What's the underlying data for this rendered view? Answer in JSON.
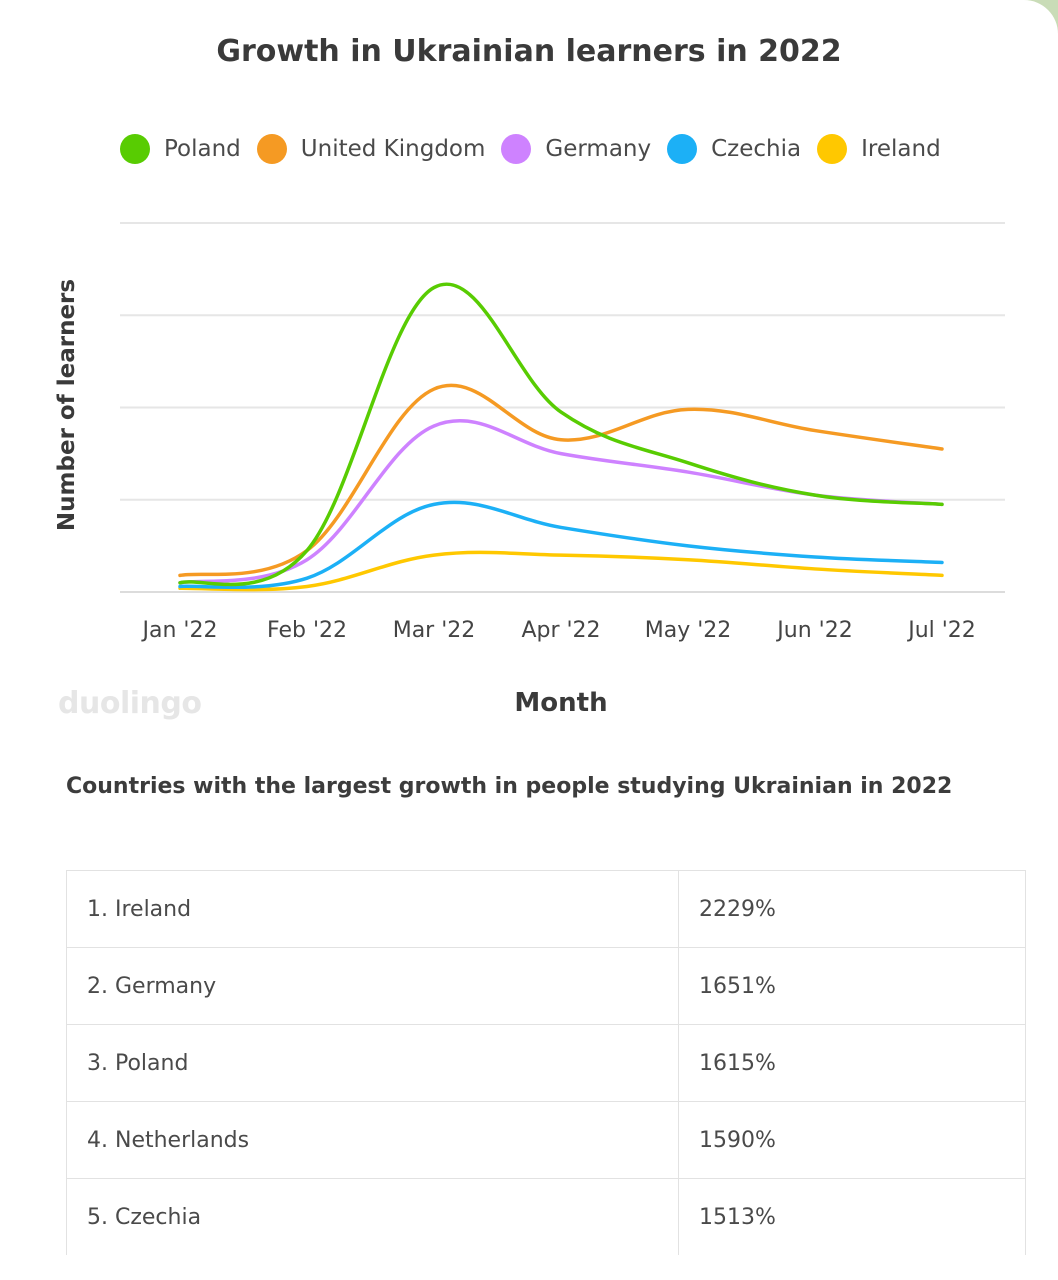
{
  "chart_data": {
    "type": "line",
    "title": "Growth in Ukrainian learners in 2022",
    "xlabel": "Month",
    "ylabel": "Number of learners",
    "categories": [
      "Jan '22",
      "Feb '22",
      "Mar '22",
      "Apr '22",
      "May '22",
      "Jun '22",
      "Jul '22"
    ],
    "ylim": [
      0,
      4
    ],
    "grid": true,
    "legend_position": "top",
    "series": [
      {
        "name": "Poland",
        "color": "#58cc02",
        "values": [
          0.1,
          0.45,
          3.3,
          1.95,
          1.4,
          1.05,
          0.95
        ]
      },
      {
        "name": "United Kingdom",
        "color": "#f59a23",
        "values": [
          0.18,
          0.45,
          2.2,
          1.65,
          1.98,
          1.75,
          1.55
        ]
      },
      {
        "name": "Germany",
        "color": "#ce82ff",
        "values": [
          0.1,
          0.35,
          1.8,
          1.5,
          1.3,
          1.05,
          0.95
        ]
      },
      {
        "name": "Czechia",
        "color": "#1cb0f6",
        "values": [
          0.06,
          0.15,
          0.95,
          0.7,
          0.5,
          0.38,
          0.32
        ]
      },
      {
        "name": "Ireland",
        "color": "#ffc800",
        "values": [
          0.04,
          0.06,
          0.4,
          0.4,
          0.35,
          0.25,
          0.18
        ]
      }
    ]
  },
  "watermark": "duolingo",
  "table": {
    "heading": "Countries with the largest growth in people studying Ukrainian in 2022",
    "rows": [
      {
        "country": "1. Ireland",
        "growth": "2229%"
      },
      {
        "country": "2. Germany",
        "growth": "1651%"
      },
      {
        "country": "3. Poland",
        "growth": "1615%"
      },
      {
        "country": "4. Netherlands",
        "growth": "1590%"
      },
      {
        "country": "5. Czechia",
        "growth": "1513%"
      }
    ]
  }
}
